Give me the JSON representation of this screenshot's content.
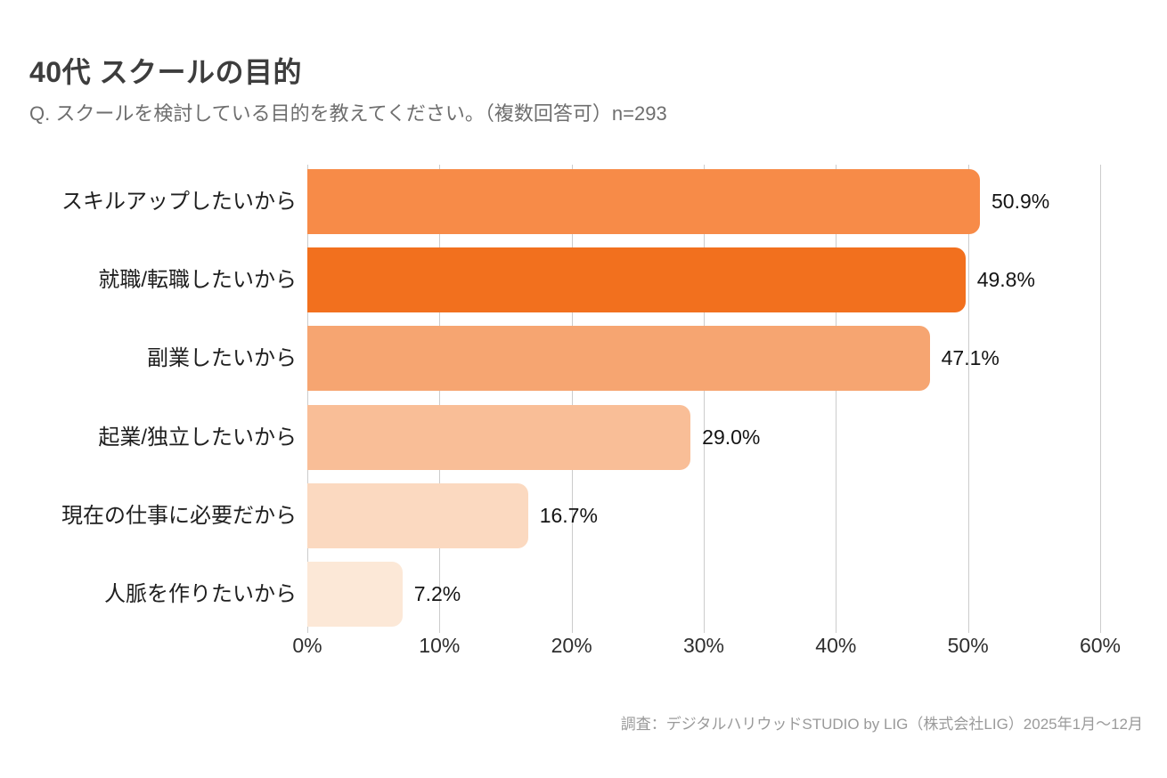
{
  "header": {
    "title": "40代 スクールの目的",
    "subtitle": "Q. スクールを検討している目的を教えてください。（複数回答可）n=293"
  },
  "footer": {
    "source": "調査：デジタルハリウッドSTUDIO by LIG（株式会社LIG）2025年1月〜12月"
  },
  "chart_data": {
    "type": "bar",
    "orientation": "horizontal",
    "title": "40代 スクールの目的",
    "categories": [
      "スキルアップしたいから",
      "就職/転職したいから",
      "副業したいから",
      "起業/独立したいから",
      "現在の仕事に必要だから",
      "人脈を作りたいから"
    ],
    "values": [
      50.9,
      49.8,
      47.1,
      29.0,
      16.7,
      7.2
    ],
    "value_labels": [
      "50.9%",
      "49.8%",
      "47.1%",
      "29.0%",
      "16.7%",
      "7.2%"
    ],
    "bar_colors": [
      "#F78B48",
      "#F2701E",
      "#F6A571",
      "#F9BE97",
      "#FBD9C0",
      "#FCE8D7"
    ],
    "xlabel": "",
    "ylabel": "",
    "xlim": [
      0,
      60
    ],
    "x_ticks": [
      0,
      10,
      20,
      30,
      40,
      50,
      60
    ],
    "x_tick_labels": [
      "0%",
      "10%",
      "20%",
      "30%",
      "40%",
      "50%",
      "60%"
    ],
    "grid": "vertical",
    "gridline_color": "#cccccc",
    "legend": "none"
  }
}
